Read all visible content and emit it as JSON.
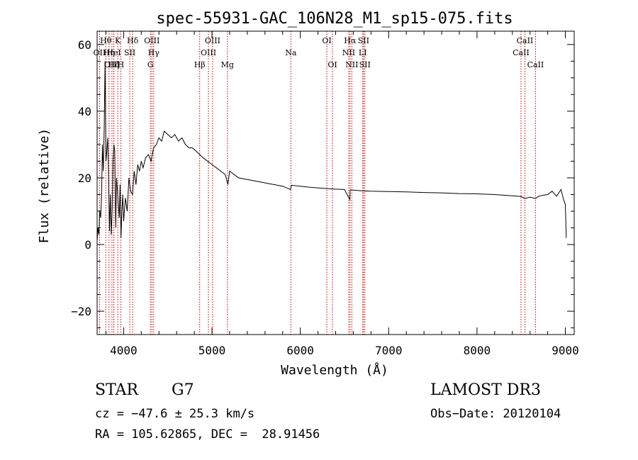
{
  "chart_data": {
    "type": "line",
    "title": "spec-55931-GAC_106N28_M1_sp15-075.fits",
    "xlabel": "Wavelength (Å)",
    "ylabel": "Flux (relative)",
    "xlim": [
      3700,
      9100
    ],
    "ylim": [
      -27,
      64
    ],
    "xticks": [
      4000,
      5000,
      6000,
      7000,
      8000,
      9000
    ],
    "yticks": [
      -20,
      0,
      20,
      40,
      60
    ],
    "grid": false,
    "series": [
      {
        "name": "spectrum",
        "x": [
          3700,
          3710,
          3720,
          3730,
          3740,
          3750,
          3760,
          3770,
          3780,
          3790,
          3800,
          3810,
          3820,
          3830,
          3840,
          3850,
          3860,
          3870,
          3880,
          3890,
          3900,
          3910,
          3920,
          3930,
          3940,
          3950,
          3960,
          3970,
          3980,
          3990,
          4000,
          4020,
          4040,
          4060,
          4080,
          4100,
          4120,
          4140,
          4160,
          4180,
          4200,
          4220,
          4250,
          4280,
          4310,
          4340,
          4370,
          4400,
          4430,
          4460,
          4500,
          4540,
          4580,
          4620,
          4660,
          4700,
          4740,
          4780,
          4820,
          4860,
          4900,
          4950,
          5000,
          5050,
          5100,
          5150,
          5180,
          5200,
          5250,
          5300,
          5400,
          5500,
          5600,
          5700,
          5800,
          5890,
          5900,
          6000,
          6100,
          6200,
          6300,
          6400,
          6500,
          6560,
          6565,
          6570,
          6600,
          6700,
          6800,
          7000,
          7200,
          7400,
          7600,
          7800,
          8000,
          8200,
          8400,
          8500,
          8540,
          8600,
          8660,
          8700,
          8750,
          8800,
          8850,
          8900,
          8950,
          8980,
          9000,
          9010
        ],
        "y": [
          1,
          5,
          3,
          10,
          8,
          14,
          30,
          22,
          35,
          55,
          25,
          28,
          32,
          20,
          4,
          15,
          3,
          10,
          25,
          30,
          28,
          5,
          20,
          16,
          12,
          8,
          18,
          2,
          10,
          15,
          7,
          14,
          10,
          20,
          16,
          15,
          22,
          18,
          24,
          22,
          25,
          23,
          26,
          27,
          25,
          29,
          30,
          32,
          31,
          34,
          33,
          32,
          33,
          31,
          32,
          30,
          29,
          29,
          28,
          27,
          26,
          25,
          24,
          23,
          22,
          21,
          18,
          22,
          21,
          20,
          19.5,
          19,
          18.5,
          18,
          17.5,
          16.5,
          17.8,
          17.5,
          17.2,
          17,
          16.8,
          16.6,
          16.5,
          13.5,
          16.4,
          16.4,
          16.3,
          16.1,
          16,
          15.9,
          15.8,
          15.6,
          15.5,
          15.3,
          15.2,
          15,
          14.6,
          14.4,
          13.8,
          14.2,
          13.8,
          14.5,
          14.8,
          15,
          16,
          14.5,
          16.5,
          13.5,
          12,
          2
        ]
      }
    ],
    "lines": [
      {
        "label": "OII",
        "wl": 3727,
        "row": 1
      },
      {
        "label": "Hθ",
        "wl": 3798,
        "row": 0
      },
      {
        "label": "OIII",
        "wl": 3868,
        "row": 2
      },
      {
        "label": "Hη",
        "wl": 3835,
        "row": 1
      },
      {
        "label": "K",
        "wl": 3934,
        "row": 0
      },
      {
        "label": "HeI",
        "wl": 3889,
        "row": 1
      },
      {
        "label": "Hζ",
        "wl": 3889,
        "row": 2
      },
      {
        "label": "H",
        "wl": 3968,
        "row": 2
      },
      {
        "label": "SII",
        "wl": 4070,
        "row": 1
      },
      {
        "label": "Hδ",
        "wl": 4102,
        "row": 0
      },
      {
        "label": "OIII",
        "wl": 4320,
        "row": 0
      },
      {
        "label": "Hγ",
        "wl": 4340,
        "row": 1
      },
      {
        "label": "G",
        "wl": 4304,
        "row": 2
      },
      {
        "label": "OIII",
        "wl": 5007,
        "row": 0
      },
      {
        "label": "OIII",
        "wl": 4960,
        "row": 1
      },
      {
        "label": "Hβ",
        "wl": 4861,
        "row": 2
      },
      {
        "label": "Mg",
        "wl": 5175,
        "row": 2
      },
      {
        "label": "Na",
        "wl": 5893,
        "row": 1
      },
      {
        "label": "OI",
        "wl": 6300,
        "row": 0
      },
      {
        "label": "OI",
        "wl": 6364,
        "row": 2
      },
      {
        "label": "Hα",
        "wl": 6563,
        "row": 0
      },
      {
        "label": "SII",
        "wl": 6716,
        "row": 0
      },
      {
        "label": "NII",
        "wl": 6548,
        "row": 1
      },
      {
        "label": "LI",
        "wl": 6707,
        "row": 1
      },
      {
        "label": "NII",
        "wl": 6583,
        "row": 2
      },
      {
        "label": "SII",
        "wl": 6731,
        "row": 2
      },
      {
        "label": "CaII",
        "wl": 8542,
        "row": 0
      },
      {
        "label": "CaII",
        "wl": 8498,
        "row": 1
      },
      {
        "label": "CaII",
        "wl": 8662,
        "row": 2
      }
    ]
  },
  "footer": {
    "class": "STAR",
    "subclass": "G7",
    "survey": "LAMOST DR3",
    "cz": "cz = −47.6 ± 25.3 km/s",
    "obs_date": "Obs−Date: 20120104",
    "coords": "RA = 105.62865, DEC =  28.91456"
  },
  "colors": {
    "axis": "#000000",
    "line_marker": "#c00000",
    "spectrum": "#000000"
  }
}
